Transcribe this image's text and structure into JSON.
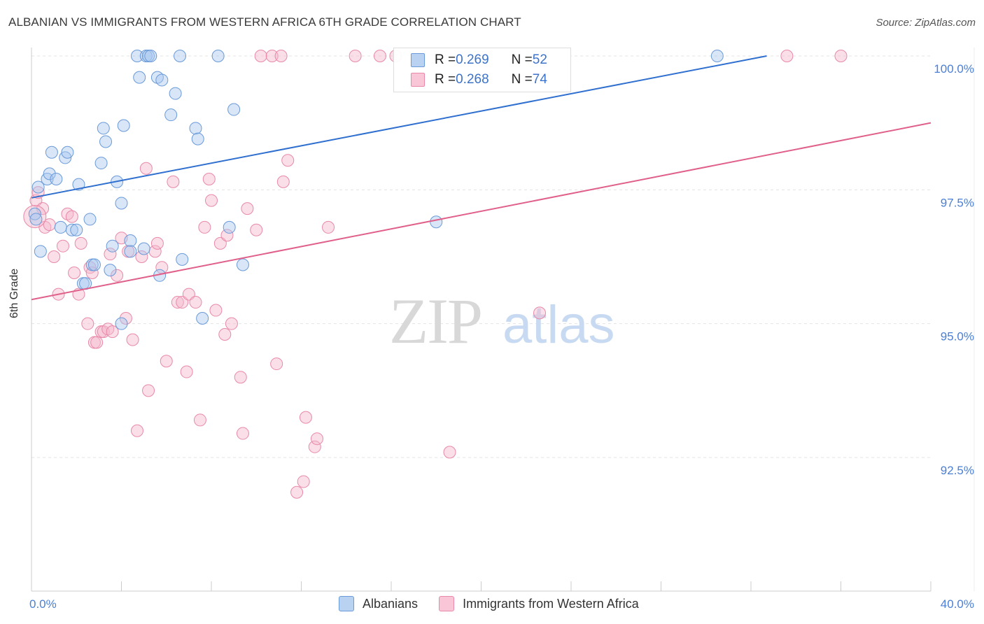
{
  "title": "ALBANIAN VS IMMIGRANTS FROM WESTERN AFRICA 6TH GRADE CORRELATION CHART",
  "source": "Source: ZipAtlas.com",
  "watermark": {
    "zip": "ZIP",
    "atlas": "atlas"
  },
  "legend": {
    "albanians": {
      "r_label": "R = ",
      "r": "0.269",
      "n_label": "N = ",
      "n": "52"
    },
    "immigrants": {
      "r_label": "R = ",
      "r": "0.268",
      "n_label": "N = ",
      "n": "74"
    }
  },
  "bottom_legend": {
    "albanians": "Albanians",
    "immigrants": "Immigrants from Western Africa"
  },
  "colors": {
    "blue_fill": "#a9c8f0",
    "blue_stroke": "#6a9ad8",
    "blue_line": "#2f6fcf",
    "pink_fill": "#f5b9cc",
    "pink_stroke": "#e889a8",
    "pink_line": "#e0608a",
    "grid": "#e3e3e3",
    "tick_text": "#4a7fd4"
  },
  "chart_data": {
    "type": "scatter",
    "title": "ALBANIAN VS IMMIGRANTS FROM WESTERN AFRICA 6TH GRADE CORRELATION CHART",
    "xlabel": "",
    "ylabel": "6th Grade",
    "xlim": [
      0.0,
      40.0
    ],
    "ylim": [
      90.0,
      100.3
    ],
    "x_tick_labels": [
      "0.0%",
      "40.0%"
    ],
    "y_ticks": [
      92.5,
      95.0,
      97.5,
      100.0
    ],
    "y_tick_labels": [
      "92.5%",
      "95.0%",
      "97.5%",
      "100.0%"
    ],
    "grid": true,
    "series": [
      {
        "name": "Albanians",
        "color": "#a9c8f0",
        "trend": [
          [
            0.0,
            97.35
          ],
          [
            32.7,
            100.0
          ]
        ],
        "points": [
          [
            0.3,
            97.55
          ],
          [
            0.4,
            96.35
          ],
          [
            0.7,
            97.7
          ],
          [
            0.8,
            97.8
          ],
          [
            0.9,
            98.2
          ],
          [
            1.1,
            97.7
          ],
          [
            1.3,
            96.8
          ],
          [
            1.5,
            98.1
          ],
          [
            1.6,
            98.2
          ],
          [
            1.8,
            96.75
          ],
          [
            2.0,
            96.75
          ],
          [
            2.1,
            97.6
          ],
          [
            2.3,
            95.75
          ],
          [
            2.4,
            95.75
          ],
          [
            2.6,
            96.95
          ],
          [
            2.7,
            96.1
          ],
          [
            2.8,
            96.1
          ],
          [
            3.1,
            98.0
          ],
          [
            3.2,
            98.65
          ],
          [
            3.3,
            98.4
          ],
          [
            3.5,
            96.0
          ],
          [
            3.6,
            96.45
          ],
          [
            3.8,
            97.65
          ],
          [
            4.0,
            95.0
          ],
          [
            4.0,
            97.25
          ],
          [
            4.1,
            98.7
          ],
          [
            4.4,
            96.55
          ],
          [
            4.4,
            96.35
          ],
          [
            4.7,
            100.0
          ],
          [
            4.8,
            99.6
          ],
          [
            5.0,
            96.4
          ],
          [
            5.1,
            100.0
          ],
          [
            5.2,
            100.0
          ],
          [
            5.3,
            100.0
          ],
          [
            5.6,
            99.6
          ],
          [
            5.7,
            95.9
          ],
          [
            5.8,
            99.55
          ],
          [
            6.2,
            98.9
          ],
          [
            6.4,
            99.3
          ],
          [
            6.6,
            100.0
          ],
          [
            6.7,
            96.2
          ],
          [
            7.3,
            98.65
          ],
          [
            7.4,
            98.45
          ],
          [
            7.6,
            95.1
          ],
          [
            8.3,
            100.0
          ],
          [
            8.8,
            96.8
          ],
          [
            9.0,
            99.0
          ],
          [
            9.4,
            96.1
          ],
          [
            18.0,
            96.9
          ],
          [
            30.5,
            100.0
          ],
          [
            0.15,
            97.05
          ],
          [
            0.2,
            96.95
          ]
        ]
      },
      {
        "name": "Immigrants from Western Africa",
        "color": "#f5b9cc",
        "trend": [
          [
            0.0,
            95.45
          ],
          [
            40.0,
            98.75
          ]
        ],
        "points": [
          [
            0.2,
            97.3
          ],
          [
            0.3,
            97.45
          ],
          [
            0.5,
            97.15
          ],
          [
            0.6,
            96.8
          ],
          [
            0.8,
            96.85
          ],
          [
            1.0,
            96.25
          ],
          [
            1.2,
            95.55
          ],
          [
            1.4,
            96.45
          ],
          [
            1.6,
            97.05
          ],
          [
            1.8,
            97.0
          ],
          [
            1.9,
            95.95
          ],
          [
            2.1,
            95.55
          ],
          [
            2.2,
            96.5
          ],
          [
            2.5,
            95.0
          ],
          [
            2.6,
            96.05
          ],
          [
            2.7,
            95.95
          ],
          [
            2.8,
            94.65
          ],
          [
            2.9,
            94.65
          ],
          [
            3.1,
            94.85
          ],
          [
            3.2,
            94.85
          ],
          [
            3.4,
            94.9
          ],
          [
            3.5,
            96.3
          ],
          [
            3.6,
            94.85
          ],
          [
            3.8,
            95.9
          ],
          [
            4.0,
            96.6
          ],
          [
            4.2,
            95.1
          ],
          [
            4.3,
            96.35
          ],
          [
            4.5,
            94.7
          ],
          [
            4.7,
            93.0
          ],
          [
            4.9,
            96.25
          ],
          [
            5.1,
            97.9
          ],
          [
            5.2,
            93.75
          ],
          [
            5.5,
            96.35
          ],
          [
            5.6,
            96.5
          ],
          [
            5.8,
            96.05
          ],
          [
            6.0,
            94.3
          ],
          [
            6.3,
            97.65
          ],
          [
            6.5,
            95.4
          ],
          [
            6.7,
            95.4
          ],
          [
            6.9,
            94.1
          ],
          [
            7.0,
            95.55
          ],
          [
            7.3,
            95.4
          ],
          [
            7.5,
            93.2
          ],
          [
            7.7,
            96.8
          ],
          [
            7.9,
            97.7
          ],
          [
            8.0,
            97.3
          ],
          [
            8.2,
            95.25
          ],
          [
            8.4,
            96.5
          ],
          [
            8.6,
            94.8
          ],
          [
            8.7,
            96.65
          ],
          [
            8.9,
            95.0
          ],
          [
            9.3,
            94.0
          ],
          [
            9.4,
            92.95
          ],
          [
            9.6,
            97.15
          ],
          [
            10.0,
            96.75
          ],
          [
            10.2,
            100.0
          ],
          [
            10.7,
            100.0
          ],
          [
            10.9,
            94.25
          ],
          [
            11.1,
            100.0
          ],
          [
            11.2,
            97.65
          ],
          [
            11.4,
            98.05
          ],
          [
            11.8,
            91.85
          ],
          [
            12.1,
            92.05
          ],
          [
            12.2,
            93.25
          ],
          [
            12.6,
            92.7
          ],
          [
            12.7,
            92.85
          ],
          [
            13.2,
            96.8
          ],
          [
            14.4,
            100.0
          ],
          [
            15.5,
            100.0
          ],
          [
            16.2,
            100.0
          ],
          [
            18.6,
            92.6
          ],
          [
            22.6,
            95.2
          ],
          [
            33.6,
            100.0
          ],
          [
            36.0,
            100.0
          ]
        ]
      }
    ]
  }
}
